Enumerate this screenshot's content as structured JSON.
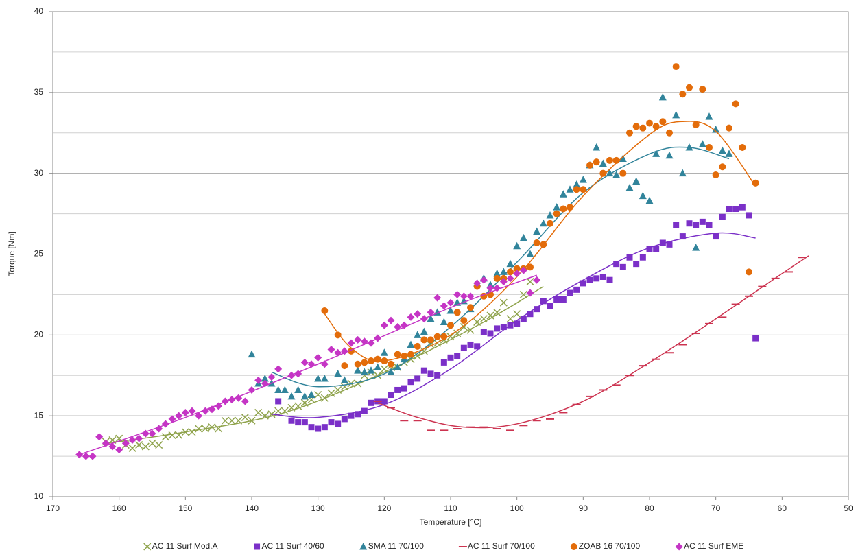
{
  "chart_data": {
    "type": "scatter",
    "x_label": "Temperature [°C]",
    "y_label": "Torque [Nm]",
    "xlim": [
      170,
      50
    ],
    "xticks": [
      170,
      160,
      150,
      140,
      130,
      120,
      110,
      100,
      90,
      80,
      70,
      60,
      50
    ],
    "ylim": [
      10,
      40
    ],
    "yticks": [
      10,
      15,
      20,
      25,
      30,
      35,
      40
    ],
    "y_minor_grid": [
      12.5,
      17.5,
      22.5,
      27.5,
      32.5,
      37.5
    ],
    "grid": true,
    "legend": "bottom",
    "series": [
      {
        "name": "AC 11 Surf Mod.A",
        "color": "#8fa34c",
        "marker": "x",
        "x": [
          162,
          161,
          160,
          159,
          158,
          157,
          156,
          155,
          154,
          153,
          152,
          151,
          150,
          149,
          148,
          147,
          146,
          145,
          144,
          143,
          142,
          141,
          140,
          139,
          138,
          137,
          136,
          135,
          134,
          133,
          132,
          131,
          130,
          129,
          128,
          127,
          126,
          125,
          124,
          123,
          122,
          121,
          120,
          119,
          118,
          117,
          116,
          115,
          114,
          113,
          112,
          111,
          110,
          109,
          108,
          107,
          106,
          105,
          104,
          103,
          102,
          101,
          100,
          99,
          98
        ],
        "values": [
          13.4,
          13.5,
          13.6,
          13.2,
          13.0,
          13.2,
          13.1,
          13.3,
          13.2,
          13.7,
          13.8,
          13.8,
          14.0,
          14.0,
          14.2,
          14.2,
          14.3,
          14.2,
          14.7,
          14.7,
          14.7,
          14.9,
          14.7,
          15.2,
          15.0,
          15.1,
          15.3,
          15.3,
          15.5,
          15.6,
          15.8,
          16.0,
          16.3,
          16.1,
          16.4,
          16.6,
          16.8,
          17.0,
          17.0,
          17.5,
          17.7,
          17.5,
          17.9,
          18.1,
          18.0,
          18.3,
          18.5,
          18.7,
          19.0,
          19.4,
          19.5,
          19.7,
          19.9,
          20.1,
          20.5,
          20.3,
          20.8,
          21.0,
          21.2,
          21.4,
          22.0,
          21.0,
          21.3,
          22.5,
          23.3
        ],
        "trend": {
          "x": [
            162,
            150,
            135,
            120,
            105,
            96
          ],
          "values": [
            13.3,
            14.0,
            15.2,
            17.7,
            20.8,
            23.0
          ]
        }
      },
      {
        "name": "AC 11 Surf 40/60",
        "color": "#7b30c8",
        "marker": "square",
        "x": [
          136,
          134,
          133,
          132,
          131,
          130,
          129,
          128,
          127,
          126,
          125,
          124,
          123,
          122,
          121,
          120,
          119,
          118,
          117,
          116,
          115,
          114,
          113,
          112,
          111,
          110,
          109,
          108,
          107,
          106,
          105,
          104,
          103,
          102,
          101,
          100,
          99,
          98,
          97,
          96,
          95,
          94,
          93,
          92,
          91,
          90,
          89,
          88,
          87,
          86,
          85,
          84,
          83,
          82,
          81,
          80,
          79,
          78,
          77,
          76,
          75,
          74,
          73,
          72,
          71,
          70,
          69,
          68,
          67,
          66,
          65,
          64
        ],
        "values": [
          15.9,
          14.7,
          14.6,
          14.6,
          14.3,
          14.2,
          14.3,
          14.6,
          14.5,
          14.8,
          15.0,
          15.1,
          15.3,
          15.8,
          15.9,
          15.9,
          16.3,
          16.6,
          16.7,
          17.1,
          17.3,
          17.8,
          17.6,
          17.5,
          18.3,
          18.6,
          18.7,
          19.2,
          19.4,
          19.3,
          20.2,
          20.1,
          20.4,
          20.5,
          20.6,
          20.7,
          21.0,
          21.3,
          21.6,
          22.1,
          21.8,
          22.2,
          22.2,
          22.6,
          22.8,
          23.2,
          23.4,
          23.5,
          23.6,
          23.4,
          24.4,
          24.2,
          24.8,
          24.4,
          24.8,
          25.3,
          25.3,
          25.7,
          25.6,
          26.8,
          26.1,
          26.9,
          26.8,
          27.0,
          26.8,
          26.1,
          27.3,
          27.8,
          27.8,
          27.9,
          27.4,
          19.8
        ],
        "trend": {
          "x": [
            137,
            130,
            120,
            110,
            100,
            90,
            80,
            70,
            64
          ],
          "values": [
            15.1,
            14.9,
            15.7,
            17.9,
            20.9,
            23.4,
            25.4,
            26.3,
            26.0
          ]
        }
      },
      {
        "name": "SMA 11 70/100",
        "color": "#31849b",
        "marker": "triangle",
        "x": [
          140,
          139,
          138,
          137,
          136,
          135,
          134,
          133,
          132,
          131,
          130,
          129,
          127,
          126,
          124,
          123,
          122,
          121,
          120,
          119,
          118,
          117,
          116,
          115,
          114,
          113,
          112,
          111,
          110,
          109,
          108,
          107,
          106,
          105,
          104,
          103,
          102,
          101,
          100,
          99,
          98,
          97,
          96,
          95,
          94,
          93,
          92,
          91,
          90,
          89,
          88,
          87,
          86,
          85,
          84,
          83,
          82,
          81,
          80,
          79,
          78,
          77,
          76,
          75,
          74,
          73,
          72,
          71,
          70,
          69,
          68
        ],
        "values": [
          18.8,
          17.0,
          17.3,
          17.0,
          16.6,
          16.6,
          16.2,
          16.6,
          16.2,
          16.3,
          17.3,
          17.3,
          17.6,
          17.2,
          17.8,
          17.7,
          17.8,
          18.0,
          18.9,
          17.7,
          18.0,
          18.5,
          19.4,
          20.0,
          20.2,
          21.0,
          21.4,
          20.8,
          21.5,
          22.0,
          22.1,
          21.6,
          23.2,
          23.5,
          23.1,
          23.8,
          23.9,
          24.4,
          25.5,
          26.0,
          25.0,
          26.4,
          26.9,
          27.4,
          27.9,
          28.7,
          29.0,
          29.3,
          29.6,
          30.5,
          31.6,
          30.6,
          30.0,
          29.9,
          30.9,
          29.1,
          29.5,
          28.6,
          28.3,
          31.2,
          34.7,
          31.1,
          33.6,
          30.0,
          31.6,
          25.4,
          31.8,
          33.5,
          32.7,
          31.4,
          31.2
        ],
        "trend": {
          "x": [
            137,
            130,
            120,
            110,
            100,
            90,
            80,
            74,
            68
          ],
          "values": [
            17.7,
            16.8,
            17.6,
            20.5,
            24.5,
            28.8,
            31.2,
            31.6,
            30.9
          ]
        }
      },
      {
        "name": "AC 11 Surf 70/100",
        "color": "#cc3350",
        "marker": "dash",
        "x": [
          121,
          119,
          117,
          115,
          113,
          111,
          109,
          107,
          105,
          103,
          101,
          99,
          97,
          95,
          93,
          91,
          89,
          87,
          85,
          83,
          81,
          79,
          77,
          75,
          73,
          71,
          69,
          67,
          65,
          63,
          61,
          59,
          57
        ],
        "values": [
          15.9,
          15.5,
          14.7,
          14.7,
          14.1,
          14.1,
          14.2,
          14.3,
          14.3,
          14.2,
          14.1,
          14.4,
          14.7,
          14.8,
          15.2,
          15.7,
          16.2,
          16.6,
          16.9,
          17.5,
          18.1,
          18.5,
          18.9,
          19.4,
          20.1,
          20.7,
          21.1,
          21.9,
          22.4,
          23.0,
          23.5,
          23.9,
          24.8
        ],
        "trend": {
          "x": [
            121,
            115,
            108,
            100,
            90,
            80,
            70,
            60,
            56
          ],
          "values": [
            15.8,
            14.9,
            14.3,
            14.5,
            15.9,
            18.3,
            21.0,
            23.8,
            24.9
          ]
        }
      },
      {
        "name": "ZOAB 16 70/100",
        "color": "#e36c0a",
        "marker": "circle",
        "x": [
          129,
          127,
          126,
          125,
          124,
          123,
          122,
          121,
          120,
          119,
          118,
          117,
          116,
          115,
          114,
          113,
          112,
          111,
          110,
          109,
          108,
          107,
          106,
          105,
          104,
          103,
          102,
          101,
          100,
          99,
          98,
          97,
          96,
          95,
          94,
          93,
          92,
          91,
          90,
          89,
          88,
          87,
          86,
          85,
          84,
          83,
          82,
          81,
          80,
          79,
          78,
          77,
          76,
          75,
          74,
          73,
          72,
          71,
          70,
          69,
          68,
          67,
          66,
          65,
          64
        ],
        "values": [
          21.5,
          20.0,
          18.1,
          19.0,
          18.2,
          18.3,
          18.4,
          18.5,
          18.4,
          18.2,
          18.8,
          18.7,
          18.8,
          19.3,
          19.7,
          19.7,
          19.9,
          19.9,
          20.6,
          21.4,
          20.9,
          21.7,
          23.0,
          22.4,
          22.5,
          23.5,
          23.5,
          23.9,
          24.1,
          24.1,
          24.2,
          25.7,
          25.6,
          26.9,
          27.5,
          27.8,
          27.9,
          29.0,
          29.0,
          30.5,
          30.7,
          30.0,
          30.8,
          30.8,
          30.0,
          32.5,
          32.9,
          32.8,
          33.1,
          32.9,
          33.2,
          32.5,
          36.6,
          34.9,
          35.3,
          33.0,
          35.2,
          31.6,
          29.9,
          30.4,
          32.8,
          34.3,
          31.6,
          23.9,
          29.4
        ],
        "trend": {
          "x": [
            129,
            125,
            120,
            110,
            100,
            90,
            80,
            75,
            70,
            64
          ],
          "values": [
            21.3,
            19.2,
            18.4,
            20.0,
            23.6,
            28.6,
            32.4,
            33.2,
            32.6,
            29.2
          ]
        }
      },
      {
        "name": "AC 11 Surf EME",
        "color": "#c535c5",
        "marker": "diamond",
        "x": [
          166,
          165,
          164,
          163,
          162,
          161,
          160,
          159,
          158,
          157,
          156,
          155,
          154,
          153,
          152,
          151,
          150,
          149,
          148,
          147,
          146,
          145,
          144,
          143,
          142,
          141,
          140,
          139,
          138,
          137,
          136,
          134,
          133,
          132,
          131,
          130,
          129,
          128,
          127,
          126,
          125,
          124,
          123,
          122,
          121,
          120,
          119,
          118,
          117,
          116,
          115,
          114,
          113,
          112,
          111,
          110,
          109,
          108,
          107,
          106,
          105,
          104,
          103,
          102,
          101,
          100,
          99,
          98,
          97
        ],
        "values": [
          12.6,
          12.5,
          12.5,
          13.7,
          13.3,
          13.1,
          12.9,
          13.3,
          13.5,
          13.6,
          13.9,
          13.9,
          14.2,
          14.5,
          14.8,
          15.0,
          15.2,
          15.3,
          15.0,
          15.3,
          15.4,
          15.6,
          15.9,
          16.0,
          16.1,
          15.9,
          16.6,
          17.2,
          17.0,
          17.4,
          17.9,
          17.5,
          17.6,
          18.3,
          18.2,
          18.6,
          18.2,
          19.1,
          18.9,
          19.0,
          19.5,
          19.7,
          19.6,
          19.5,
          19.8,
          20.6,
          20.9,
          20.5,
          20.6,
          21.1,
          21.3,
          21.0,
          21.4,
          22.3,
          21.8,
          22.0,
          22.5,
          22.4,
          22.4,
          23.2,
          23.4,
          22.9,
          22.9,
          23.3,
          23.5,
          23.8,
          24.0,
          22.6,
          23.4
        ],
        "trend": {
          "x": [
            166,
            150,
            130,
            110,
            97
          ],
          "values": [
            12.6,
            14.9,
            18.2,
            21.7,
            23.7
          ]
        }
      }
    ]
  }
}
